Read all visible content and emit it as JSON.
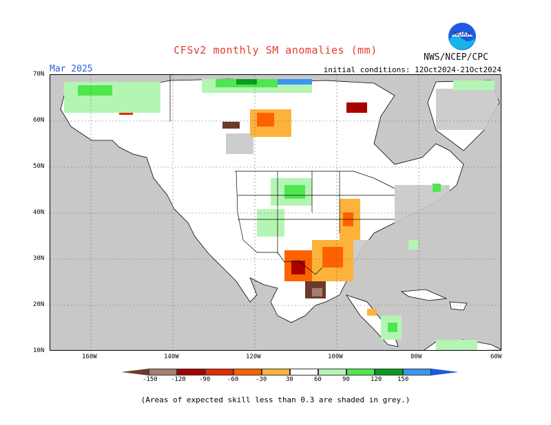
{
  "title": "CFSv2 monthly SM anomalies (mm)",
  "target_month": "Mar 2025",
  "initial_conditions": "initial conditions: 12Oct2024-21Oct2024",
  "agency": "NWS/NCEP/CPC",
  "logo_text": "NOAA",
  "latitude_labels": [
    "70N",
    "60N",
    "50N",
    "40N",
    "30N",
    "20N",
    "10N"
  ],
  "longitude_labels": [
    "160W",
    "140W",
    "120W",
    "100W",
    "80W",
    "60W"
  ],
  "legend": {
    "labels": [
      "-150",
      "-120",
      "-90",
      "-60",
      "-30",
      "30",
      "60",
      "90",
      "120",
      "150"
    ],
    "colors": [
      "#6b3a2a",
      "#a57e6c",
      "#a80000",
      "#e12b00",
      "#fe6200",
      "#fdb23c",
      "#ffffff",
      "#b4f5b4",
      "#50e650",
      "#0a9c1e",
      "#3c96f0",
      "#1e5ae0"
    ]
  },
  "note": "(Areas of expected skill less than 0.3 are shaded in grey.)",
  "colors": {
    "ocean_grey": "#c8c8c8",
    "land_white": "#ffffff",
    "title_red": "#e8392f",
    "month_blue": "#2b5fd9"
  }
}
